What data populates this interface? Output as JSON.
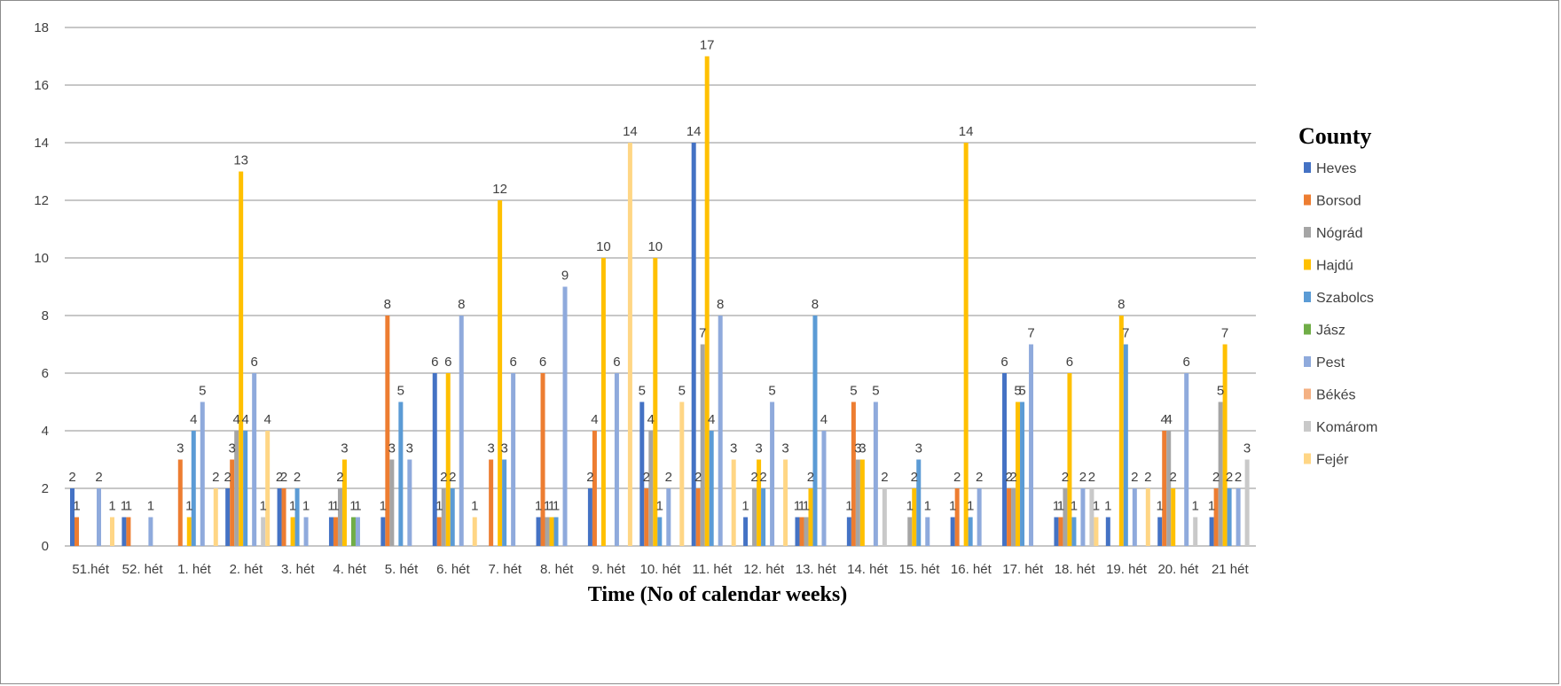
{
  "chart_data": {
    "type": "bar",
    "xlabel": "Time (No of  calendar weeks)",
    "ylabel": "",
    "ylim": [
      0,
      18
    ],
    "yticks": [
      0,
      2,
      4,
      6,
      8,
      10,
      12,
      14,
      16,
      18
    ],
    "grid": true,
    "legend_position": "right",
    "legend_title": "County",
    "categories": [
      "51.hét",
      "52. hét",
      "1. hét",
      "2. hét",
      "3. hét",
      "4. hét",
      "5. hét",
      "6. hét",
      "7. hét",
      "8. hét",
      "9. hét",
      "10. hét",
      "11. hét",
      "12. hét",
      "13. hét",
      "14. hét",
      "15. hét",
      "16. hét",
      "17. hét",
      "18. hét",
      "19. hét",
      "20. hét",
      "21 hét"
    ],
    "series": [
      {
        "name": "Heves",
        "color": "#4472c4",
        "values": [
          2,
          1,
          0,
          2,
          2,
          1,
          1,
          6,
          0,
          1,
          2,
          5,
          14,
          1,
          1,
          1,
          0,
          1,
          6,
          1,
          1,
          1,
          1
        ]
      },
      {
        "name": "Borsod",
        "color": "#ed7d31",
        "values": [
          1,
          1,
          3,
          3,
          2,
          1,
          8,
          1,
          3,
          6,
          4,
          2,
          2,
          0,
          1,
          5,
          0,
          2,
          2,
          1,
          0,
          4,
          2
        ]
      },
      {
        "name": "Nógrád",
        "color": "#a5a5a5",
        "values": [
          0,
          0,
          0,
          4,
          0,
          2,
          3,
          2,
          0,
          1,
          0,
          4,
          7,
          2,
          1,
          3,
          1,
          0,
          2,
          2,
          0,
          4,
          5
        ]
      },
      {
        "name": "Hajdú",
        "color": "#ffc000",
        "values": [
          0,
          0,
          1,
          13,
          1,
          3,
          0,
          6,
          12,
          1,
          10,
          10,
          17,
          3,
          2,
          3,
          2,
          14,
          5,
          6,
          8,
          2,
          7
        ]
      },
      {
        "name": "Szabolcs",
        "color": "#5b9bd5",
        "values": [
          0,
          0,
          4,
          4,
          2,
          0,
          5,
          2,
          3,
          1,
          0,
          1,
          4,
          2,
          8,
          0,
          3,
          1,
          5,
          1,
          7,
          0,
          2
        ]
      },
      {
        "name": "Jász",
        "color": "#70ad47",
        "values": [
          0,
          0,
          0,
          0,
          0,
          1,
          0,
          0,
          0,
          0,
          0,
          0,
          0,
          0,
          0,
          0,
          0,
          0,
          0,
          0,
          0,
          0,
          0
        ]
      },
      {
        "name": "Pest",
        "color": "#8faadc",
        "values": [
          2,
          1,
          5,
          6,
          1,
          1,
          3,
          8,
          6,
          9,
          6,
          2,
          8,
          5,
          4,
          5,
          1,
          2,
          7,
          2,
          2,
          6,
          2
        ]
      },
      {
        "name": "Békés",
        "color": "#f4b183",
        "values": [
          0,
          0,
          0,
          0,
          0,
          0,
          0,
          0,
          0,
          0,
          0,
          0,
          0,
          0,
          0,
          0,
          0,
          0,
          0,
          0,
          0,
          0,
          0
        ]
      },
      {
        "name": "Komárom",
        "color": "#c9c9c9",
        "values": [
          0,
          0,
          0,
          1,
          0,
          0,
          0,
          0,
          0,
          0,
          0,
          0,
          0,
          0,
          0,
          2,
          0,
          0,
          0,
          2,
          0,
          1,
          3
        ]
      },
      {
        "name": "Fejér",
        "color": "#ffd685",
        "values": [
          1,
          0,
          2,
          4,
          0,
          0,
          0,
          1,
          0,
          0,
          14,
          5,
          3,
          3,
          0,
          0,
          0,
          0,
          0,
          1,
          2,
          0,
          0
        ]
      }
    ]
  }
}
